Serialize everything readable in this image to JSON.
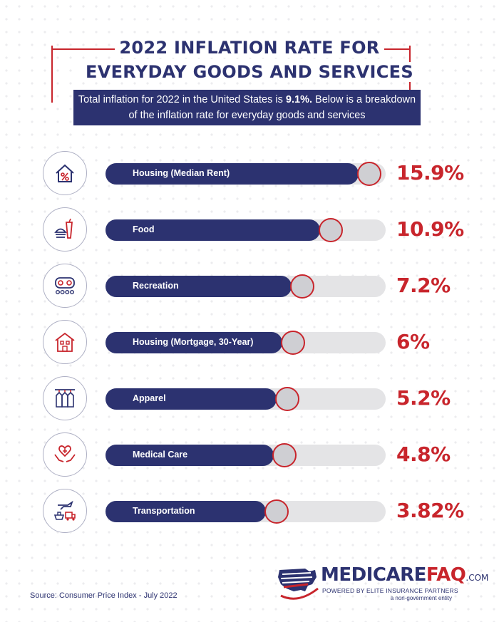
{
  "header": {
    "title_line1": "2022 INFLATION RATE FOR",
    "title_line2": "EVERYDAY GOODS AND SERVICES",
    "subtitle_pre": "Total inflation for 2022 in the United States is ",
    "subtitle_bold": "9.1%.",
    "subtitle_post": " Below is a breakdown of the inflation rate for everyday goods and services"
  },
  "chart_data": {
    "type": "bar",
    "orientation": "horizontal",
    "categories": [
      "Housing (Median Rent)",
      "Food",
      "Recreation",
      "Housing (Mortgage, 30-Year)",
      "Apparel",
      "Medical Care",
      "Transportation"
    ],
    "values": [
      15.9,
      10.9,
      7.2,
      6,
      5.2,
      4.8,
      3.82
    ],
    "value_labels": [
      "15.9%",
      "10.9%",
      "7.2%",
      "6%",
      "5.2%",
      "4.8%",
      "3.82%"
    ],
    "icons": [
      "house-percent-icon",
      "fast-food-icon",
      "game-controller-icon",
      "apartment-building-icon",
      "clothes-rack-icon",
      "heart-in-hands-icon",
      "transport-icon"
    ],
    "colors": {
      "bar": "#2c3270",
      "track": "#e4e4e6",
      "knob_border": "#c8252c",
      "value": "#c8252c"
    }
  },
  "footer": {
    "source": "Source: Consumer Price Index - July 2022",
    "logo_part1": "MEDICARE",
    "logo_part2": "FAQ",
    "logo_part3": ".COM",
    "logo_tagline": "POWERED BY ELITE INSURANCE PARTNERS",
    "logo_tagline2": "a non-government entity"
  }
}
